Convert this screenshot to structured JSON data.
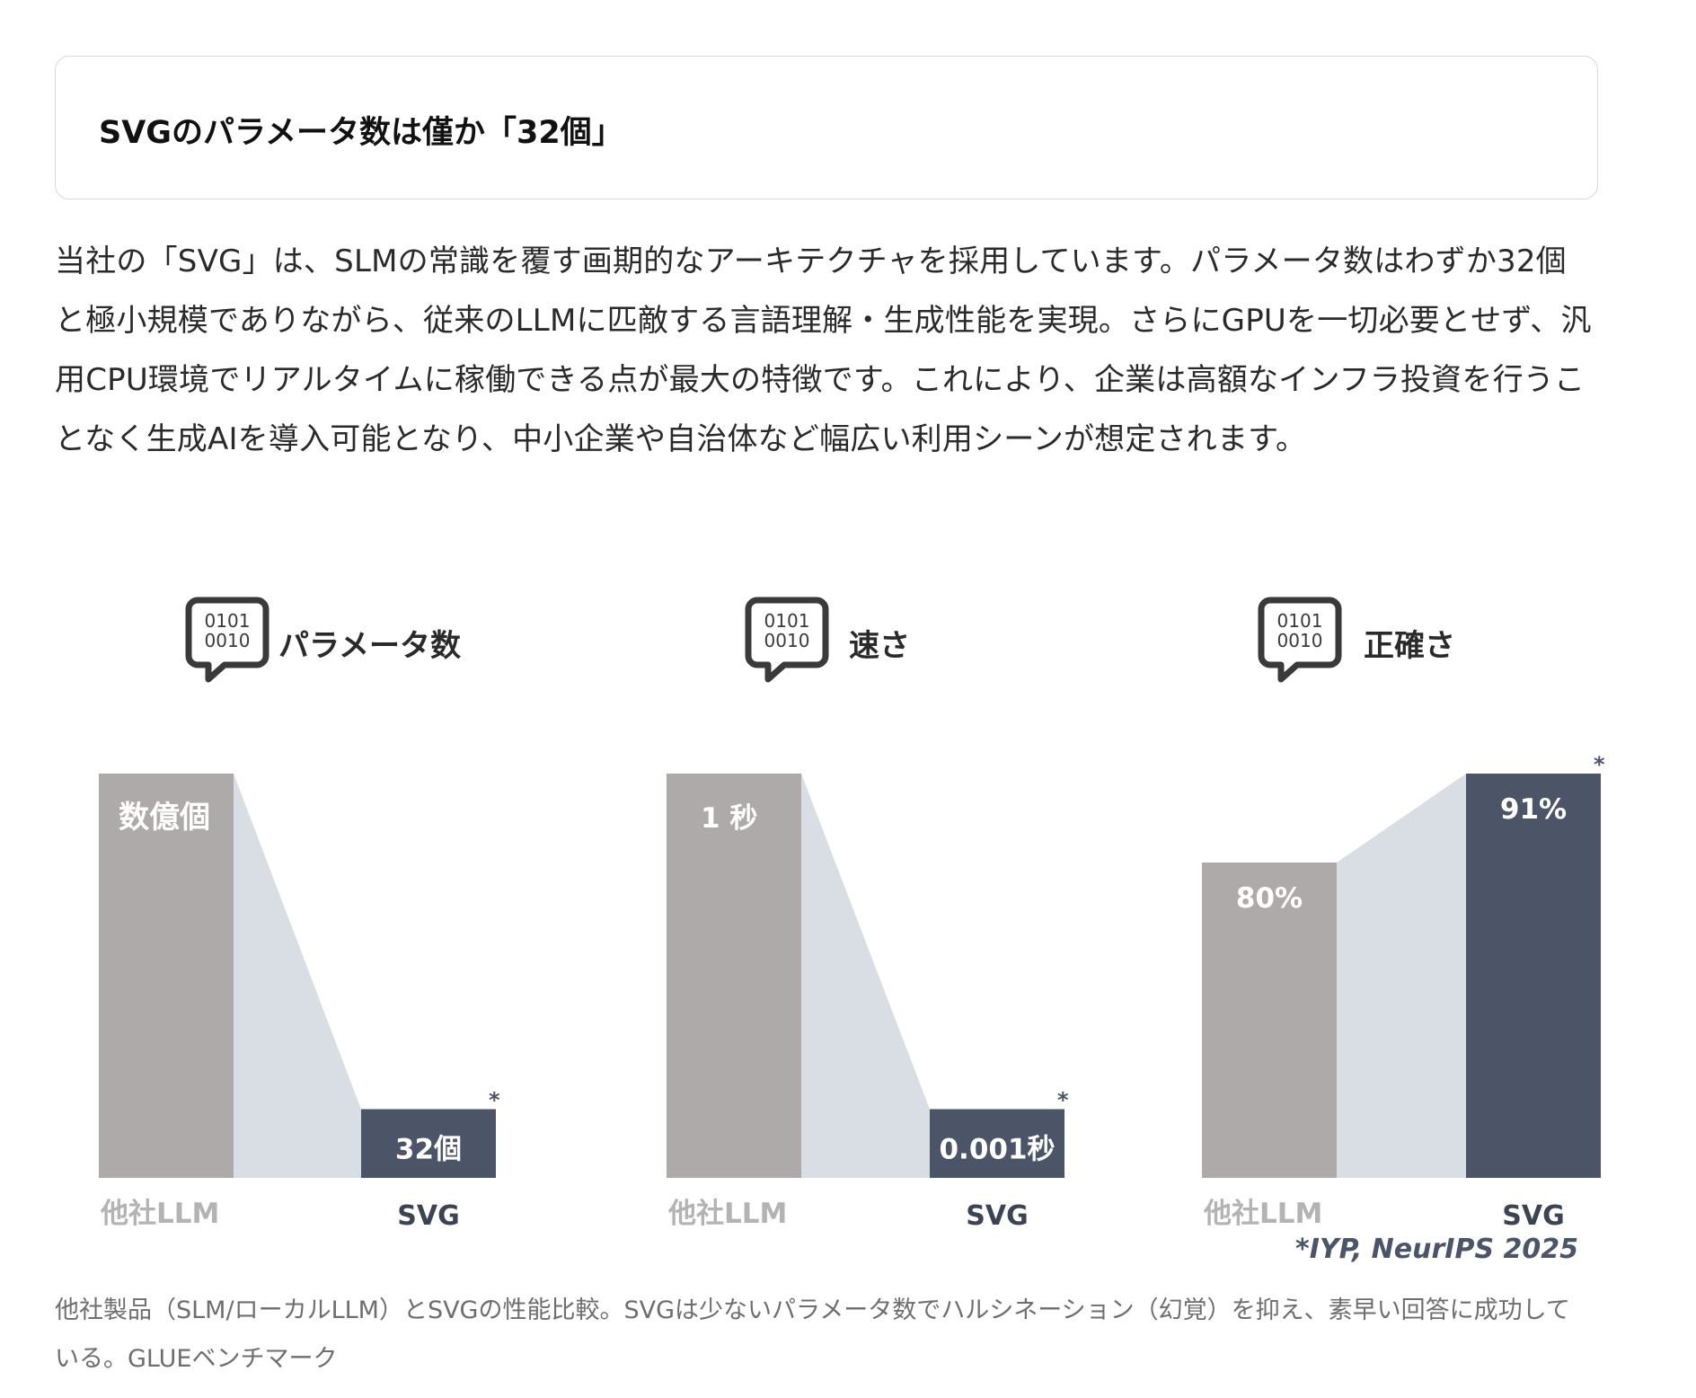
{
  "heading": {
    "text": "SVGのパラメータ数は僅か「32個」"
  },
  "body": {
    "text": "当社の「SVG」は、SLMの常識を覆す画期的なアーキテクチャを採用しています。パラメータ数はわずか32個と極小規模でありながら、従来のLLMに匹敵する言語理解・生成性能を実現。さらにGPUを一切必要とせず、汎用CPU環境でリアルタイムに稼働できる点が最大の特徴です。これにより、企業は高額なインフラ投資を行うことなく生成AIを導入可能となり、中小企業や自治体など幅広い利用シーンが想定されます。"
  },
  "caption": {
    "text": "他社製品（SLM/ローカルLLM）とSVGの性能比較。SVGは少ないパラメータ数でハルシネーション（幻覚）を抑え、素早い回答に成功している。GLUEベンチマーク"
  },
  "footnote": "*IYP, NeurIPS 2025",
  "icon": {
    "name": "binary-speech-bubble-icon",
    "line1": "0101",
    "line2": "0010"
  },
  "colors": {
    "other_bar": "#aeaaa9",
    "svg_bar": "#4b5567",
    "connector": "#d9dde4",
    "category_other": "#b3b3b3",
    "category_svg": "#3c4352",
    "footnote": "#4b5567"
  },
  "chart_data": [
    {
      "type": "bar",
      "title": "パラメータ数",
      "categories": [
        "他社LLM",
        "SVG"
      ],
      "value_labels": [
        "数億個",
        "32個"
      ],
      "relative_heights": [
        1.0,
        0.17
      ],
      "asterisk_on": "SVG",
      "asterisk": "*"
    },
    {
      "type": "bar",
      "title": "速さ",
      "categories": [
        "他社LLM",
        "SVG"
      ],
      "value_labels": [
        "1 秒",
        "0.001秒"
      ],
      "relative_heights": [
        1.0,
        0.17
      ],
      "asterisk_on": "SVG",
      "asterisk": "*"
    },
    {
      "type": "bar",
      "title": "正確さ",
      "categories": [
        "他社LLM",
        "SVG"
      ],
      "values": [
        80,
        91
      ],
      "value_labels": [
        "80%",
        "91%"
      ],
      "unit": "%",
      "relative_heights": [
        0.78,
        1.0
      ],
      "asterisk_on": "SVG",
      "asterisk": "*"
    }
  ]
}
